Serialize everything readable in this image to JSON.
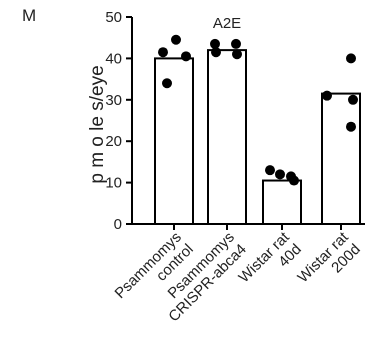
{
  "panel_label": "M",
  "chart_data": {
    "type": "bar",
    "title": "A2E",
    "xlabel": "",
    "ylabel": "p m o le s/eye",
    "ylim": [
      0,
      50
    ],
    "yticks": [
      0,
      10,
      20,
      30,
      40,
      50
    ],
    "categories": [
      [
        "Psammomys",
        "control"
      ],
      [
        "Psammomys",
        "CRISPR-abca4"
      ],
      [
        "Wistar rat",
        "40d"
      ],
      [
        "Wistar rat",
        "200d"
      ]
    ],
    "values": [
      40,
      42,
      10.5,
      31.5
    ],
    "points": [
      [
        44.5,
        41.5,
        40.5,
        34
      ],
      [
        43.5,
        43.5,
        41.5,
        41
      ],
      [
        13,
        12,
        11.5,
        10.5
      ],
      [
        40,
        31,
        30,
        23.5
      ]
    ],
    "bar_fill": "#ffffff",
    "bar_stroke": "#000000",
    "point_color": "#000000",
    "grid": false,
    "legend": "none"
  }
}
